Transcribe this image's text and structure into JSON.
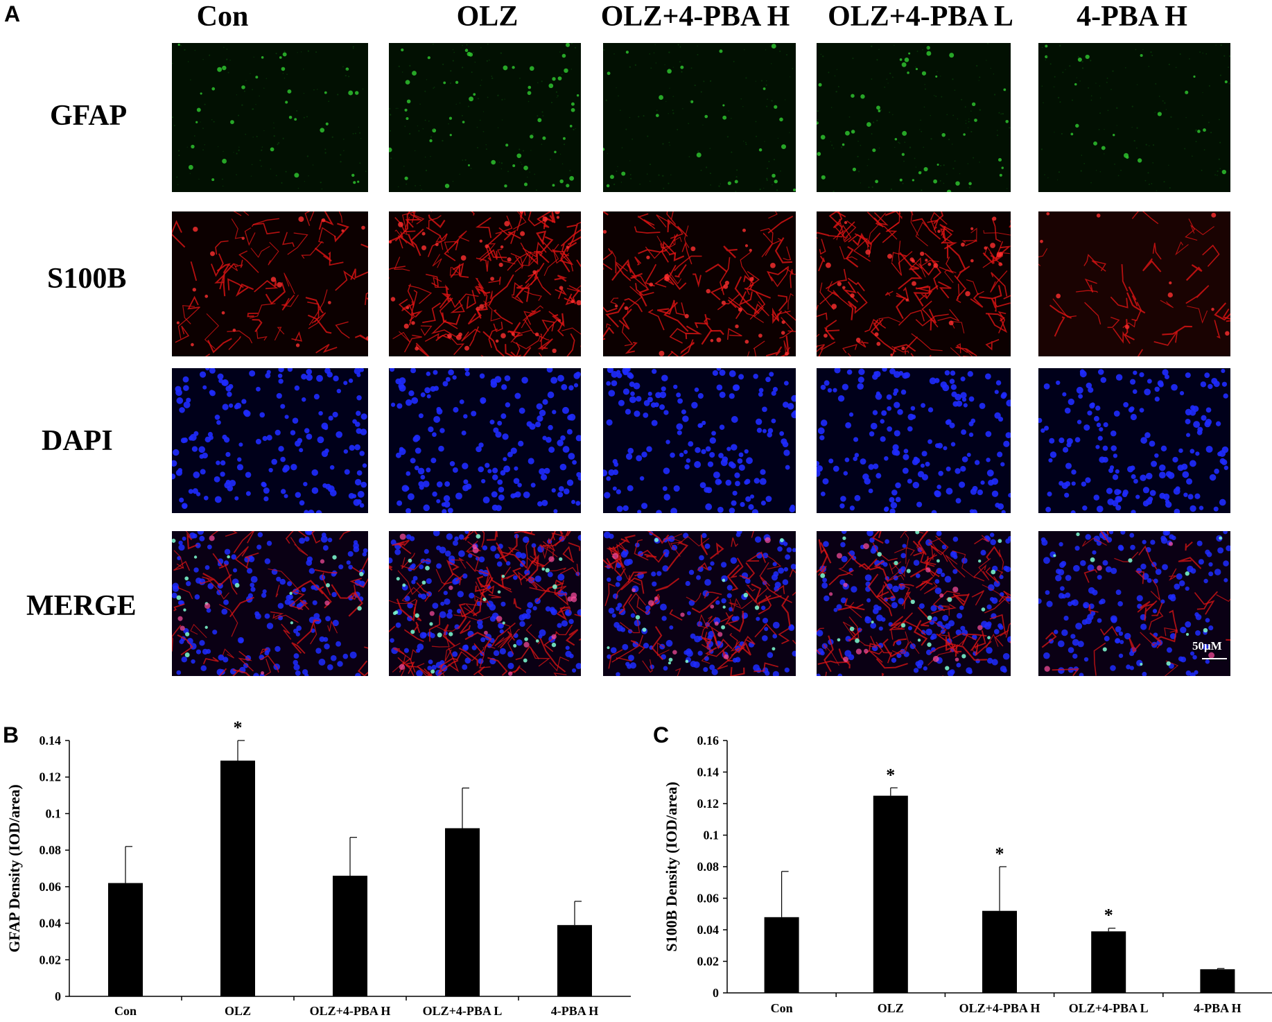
{
  "panel_labels": {
    "a": "A",
    "b": "B",
    "c": "C"
  },
  "column_headers": [
    "Con",
    "OLZ",
    "OLZ+4-PBA H",
    "OLZ+4-PBA L",
    "4-PBA H"
  ],
  "row_headers": [
    "GFAP",
    "S100B",
    "DAPI",
    "MERGE"
  ],
  "scale_bar_label": "50μM",
  "stain_colors": {
    "GFAP": "#2ec12e",
    "S100B": "#e01414",
    "DAPI": "#1f2bff"
  },
  "chart_data": [
    {
      "type": "bar",
      "title": "",
      "categories": [
        "Con",
        "OLZ",
        "OLZ+4-PBA H",
        "OLZ+4-PBA L",
        "4-PBA H"
      ],
      "values": [
        0.062,
        0.129,
        0.066,
        0.092,
        0.039
      ],
      "error_bars": [
        0.02,
        0.011,
        0.021,
        0.022,
        0.013
      ],
      "significance": [
        "",
        "*",
        "",
        "",
        ""
      ],
      "ylabel": "GFAP Density (IOD/area)",
      "xlabel": "",
      "ylim": [
        0,
        0.14
      ],
      "yticks": [
        "0",
        "0.02",
        "0.04",
        "0.06",
        "0.08",
        "0.1",
        "0.12",
        "0.14"
      ],
      "bar_color": "#000000",
      "grid": false,
      "legend": "none"
    },
    {
      "type": "bar",
      "title": "",
      "categories": [
        "Con",
        "OLZ",
        "OLZ+4-PBA H",
        "OLZ+4-PBA L",
        "4-PBA H"
      ],
      "values": [
        0.048,
        0.125,
        0.052,
        0.039,
        0.015
      ],
      "error_bars": [
        0.029,
        0.005,
        0.028,
        0.002,
        0.0005
      ],
      "significance": [
        "",
        "*",
        "*",
        "*",
        ""
      ],
      "ylabel": "S100B Density (IOD/area)",
      "xlabel": "",
      "ylim": [
        0,
        0.16
      ],
      "yticks": [
        "0",
        "0.02",
        "0.04",
        "0.06",
        "0.08",
        "0.1",
        "0.12",
        "0.14",
        "0.16"
      ],
      "bar_color": "#000000",
      "grid": false,
      "legend": "none"
    }
  ]
}
